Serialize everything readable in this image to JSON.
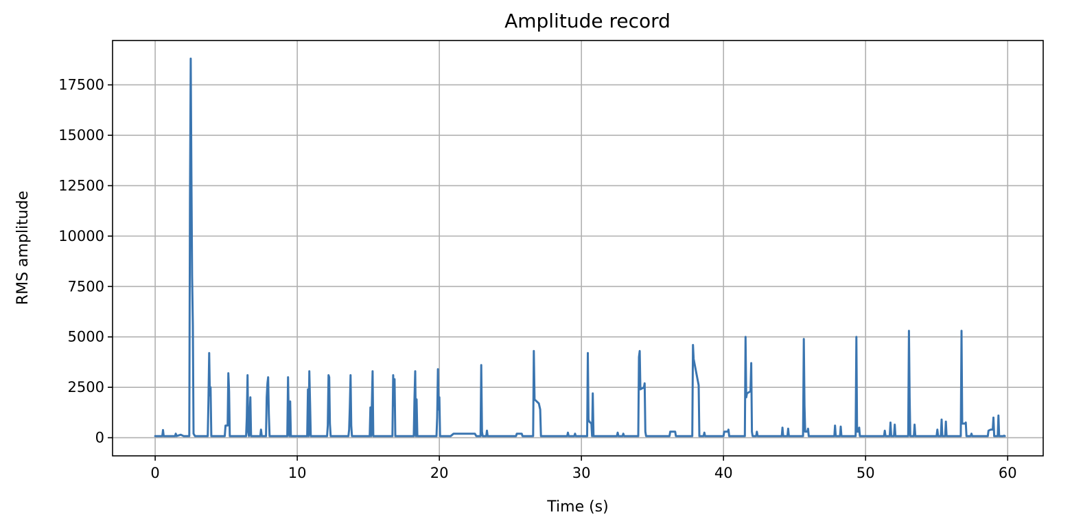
{
  "chart_data": {
    "type": "line",
    "title": "Amplitude record",
    "xlabel": "Time (s)",
    "ylabel": "RMS amplitude",
    "xlim": [
      -3,
      62.5
    ],
    "ylim": [
      -900,
      19700
    ],
    "x_ticks": [
      0,
      10,
      20,
      30,
      40,
      50,
      60
    ],
    "y_ticks": [
      0,
      2500,
      5000,
      7500,
      10000,
      12500,
      15000,
      17500
    ],
    "grid": true,
    "series": [
      {
        "color": "#3a75b0",
        "points": [
          [
            0.0,
            80
          ],
          [
            0.5,
            80
          ],
          [
            0.55,
            380
          ],
          [
            0.6,
            80
          ],
          [
            1.4,
            80
          ],
          [
            1.45,
            200
          ],
          [
            1.5,
            80
          ],
          [
            1.8,
            150
          ],
          [
            2.0,
            80
          ],
          [
            2.4,
            80
          ],
          [
            2.45,
            11800
          ],
          [
            2.5,
            18800
          ],
          [
            2.55,
            13000
          ],
          [
            2.6,
            8000
          ],
          [
            2.65,
            5600
          ],
          [
            2.7,
            200
          ],
          [
            2.8,
            80
          ],
          [
            3.7,
            80
          ],
          [
            3.75,
            1800
          ],
          [
            3.8,
            4200
          ],
          [
            3.85,
            2100
          ],
          [
            3.9,
            2500
          ],
          [
            3.95,
            80
          ],
          [
            4.9,
            80
          ],
          [
            4.95,
            600
          ],
          [
            5.1,
            600
          ],
          [
            5.15,
            3200
          ],
          [
            5.2,
            2300
          ],
          [
            5.25,
            80
          ],
          [
            6.4,
            80
          ],
          [
            6.45,
            1000
          ],
          [
            6.5,
            3100
          ],
          [
            6.55,
            300
          ],
          [
            6.6,
            80
          ],
          [
            6.7,
            2000
          ],
          [
            6.75,
            80
          ],
          [
            7.4,
            80
          ],
          [
            7.45,
            400
          ],
          [
            7.5,
            80
          ],
          [
            7.8,
            80
          ],
          [
            7.85,
            2000
          ],
          [
            7.9,
            2700
          ],
          [
            7.95,
            3000
          ],
          [
            8.0,
            1200
          ],
          [
            8.05,
            80
          ],
          [
            9.3,
            80
          ],
          [
            9.35,
            3000
          ],
          [
            9.4,
            1000
          ],
          [
            9.45,
            80
          ],
          [
            9.5,
            1800
          ],
          [
            9.55,
            80
          ],
          [
            10.7,
            80
          ],
          [
            10.75,
            2400
          ],
          [
            10.8,
            80
          ],
          [
            10.85,
            3300
          ],
          [
            10.9,
            1700
          ],
          [
            10.95,
            80
          ],
          [
            12.1,
            80
          ],
          [
            12.15,
            600
          ],
          [
            12.2,
            3100
          ],
          [
            12.25,
            3000
          ],
          [
            12.3,
            700
          ],
          [
            12.35,
            80
          ],
          [
            13.6,
            80
          ],
          [
            13.65,
            400
          ],
          [
            13.7,
            1500
          ],
          [
            13.75,
            3100
          ],
          [
            13.8,
            600
          ],
          [
            13.85,
            80
          ],
          [
            15.1,
            80
          ],
          [
            15.15,
            1500
          ],
          [
            15.2,
            80
          ],
          [
            15.3,
            3300
          ],
          [
            15.35,
            80
          ],
          [
            16.7,
            80
          ],
          [
            16.75,
            3100
          ],
          [
            16.8,
            1600
          ],
          [
            16.85,
            2900
          ],
          [
            16.9,
            80
          ],
          [
            18.2,
            80
          ],
          [
            18.25,
            1900
          ],
          [
            18.3,
            3300
          ],
          [
            18.35,
            80
          ],
          [
            18.4,
            1900
          ],
          [
            18.45,
            80
          ],
          [
            19.8,
            80
          ],
          [
            19.85,
            1000
          ],
          [
            19.9,
            3400
          ],
          [
            19.95,
            1400
          ],
          [
            20.0,
            2000
          ],
          [
            20.05,
            80
          ],
          [
            20.8,
            80
          ],
          [
            21.0,
            200
          ],
          [
            22.5,
            200
          ],
          [
            22.6,
            80
          ],
          [
            22.9,
            80
          ],
          [
            22.95,
            3600
          ],
          [
            23.0,
            300
          ],
          [
            23.05,
            80
          ],
          [
            23.3,
            80
          ],
          [
            23.35,
            350
          ],
          [
            23.4,
            80
          ],
          [
            25.4,
            80
          ],
          [
            25.45,
            200
          ],
          [
            25.8,
            200
          ],
          [
            25.85,
            80
          ],
          [
            26.6,
            80
          ],
          [
            26.65,
            4300
          ],
          [
            26.7,
            1900
          ],
          [
            27.0,
            1700
          ],
          [
            27.1,
            1400
          ],
          [
            27.15,
            80
          ],
          [
            29.0,
            80
          ],
          [
            29.05,
            250
          ],
          [
            29.1,
            80
          ],
          [
            29.5,
            80
          ],
          [
            29.55,
            200
          ],
          [
            29.6,
            80
          ],
          [
            30.4,
            80
          ],
          [
            30.45,
            4200
          ],
          [
            30.5,
            900
          ],
          [
            30.55,
            800
          ],
          [
            30.7,
            700
          ],
          [
            30.75,
            80
          ],
          [
            30.8,
            2200
          ],
          [
            30.85,
            80
          ],
          [
            32.5,
            80
          ],
          [
            32.55,
            250
          ],
          [
            32.6,
            80
          ],
          [
            32.9,
            80
          ],
          [
            32.95,
            200
          ],
          [
            33.0,
            80
          ],
          [
            34.0,
            80
          ],
          [
            34.05,
            4000
          ],
          [
            34.1,
            4300
          ],
          [
            34.15,
            2400
          ],
          [
            34.4,
            2500
          ],
          [
            34.45,
            2700
          ],
          [
            34.5,
            300
          ],
          [
            34.55,
            80
          ],
          [
            36.2,
            80
          ],
          [
            36.25,
            300
          ],
          [
            36.6,
            300
          ],
          [
            36.65,
            80
          ],
          [
            37.8,
            80
          ],
          [
            37.85,
            4600
          ],
          [
            37.9,
            3900
          ],
          [
            38.25,
            2600
          ],
          [
            38.3,
            80
          ],
          [
            38.6,
            80
          ],
          [
            38.65,
            250
          ],
          [
            38.7,
            80
          ],
          [
            40.0,
            80
          ],
          [
            40.05,
            300
          ],
          [
            40.3,
            300
          ],
          [
            40.35,
            400
          ],
          [
            40.4,
            80
          ],
          [
            41.5,
            80
          ],
          [
            41.55,
            5000
          ],
          [
            41.6,
            2000
          ],
          [
            41.65,
            2200
          ],
          [
            41.9,
            2300
          ],
          [
            41.95,
            3700
          ],
          [
            42.0,
            300
          ],
          [
            42.05,
            80
          ],
          [
            42.3,
            80
          ],
          [
            42.35,
            300
          ],
          [
            42.4,
            80
          ],
          [
            44.1,
            80
          ],
          [
            44.15,
            500
          ],
          [
            44.2,
            80
          ],
          [
            44.5,
            80
          ],
          [
            44.55,
            450
          ],
          [
            44.6,
            80
          ],
          [
            45.6,
            80
          ],
          [
            45.65,
            4900
          ],
          [
            45.7,
            1600
          ],
          [
            45.75,
            300
          ],
          [
            45.9,
            300
          ],
          [
            45.95,
            450
          ],
          [
            46.0,
            80
          ],
          [
            47.8,
            80
          ],
          [
            47.85,
            600
          ],
          [
            47.9,
            80
          ],
          [
            48.2,
            80
          ],
          [
            48.25,
            550
          ],
          [
            48.3,
            80
          ],
          [
            49.3,
            80
          ],
          [
            49.35,
            5000
          ],
          [
            49.4,
            300
          ],
          [
            49.5,
            300
          ],
          [
            49.55,
            500
          ],
          [
            49.6,
            80
          ],
          [
            51.3,
            80
          ],
          [
            51.35,
            350
          ],
          [
            51.4,
            80
          ],
          [
            51.7,
            80
          ],
          [
            51.75,
            750
          ],
          [
            51.8,
            80
          ],
          [
            52.0,
            80
          ],
          [
            52.05,
            650
          ],
          [
            52.1,
            80
          ],
          [
            53.0,
            80
          ],
          [
            53.05,
            5300
          ],
          [
            53.1,
            2000
          ],
          [
            53.15,
            80
          ],
          [
            53.4,
            80
          ],
          [
            53.45,
            650
          ],
          [
            53.5,
            80
          ],
          [
            55.0,
            80
          ],
          [
            55.05,
            400
          ],
          [
            55.1,
            80
          ],
          [
            55.3,
            80
          ],
          [
            55.35,
            900
          ],
          [
            55.4,
            80
          ],
          [
            55.6,
            80
          ],
          [
            55.65,
            800
          ],
          [
            55.7,
            80
          ],
          [
            56.7,
            80
          ],
          [
            56.75,
            5300
          ],
          [
            56.8,
            700
          ],
          [
            57.0,
            700
          ],
          [
            57.05,
            750
          ],
          [
            57.1,
            80
          ],
          [
            57.4,
            80
          ],
          [
            57.45,
            200
          ],
          [
            57.5,
            80
          ],
          [
            58.6,
            80
          ],
          [
            58.65,
            350
          ],
          [
            58.8,
            400
          ],
          [
            58.95,
            400
          ],
          [
            59.0,
            1000
          ],
          [
            59.05,
            80
          ],
          [
            59.3,
            80
          ],
          [
            59.35,
            1100
          ],
          [
            59.4,
            80
          ],
          [
            59.7,
            80
          ],
          [
            59.75,
            100
          ],
          [
            59.8,
            80
          ]
        ]
      }
    ]
  }
}
